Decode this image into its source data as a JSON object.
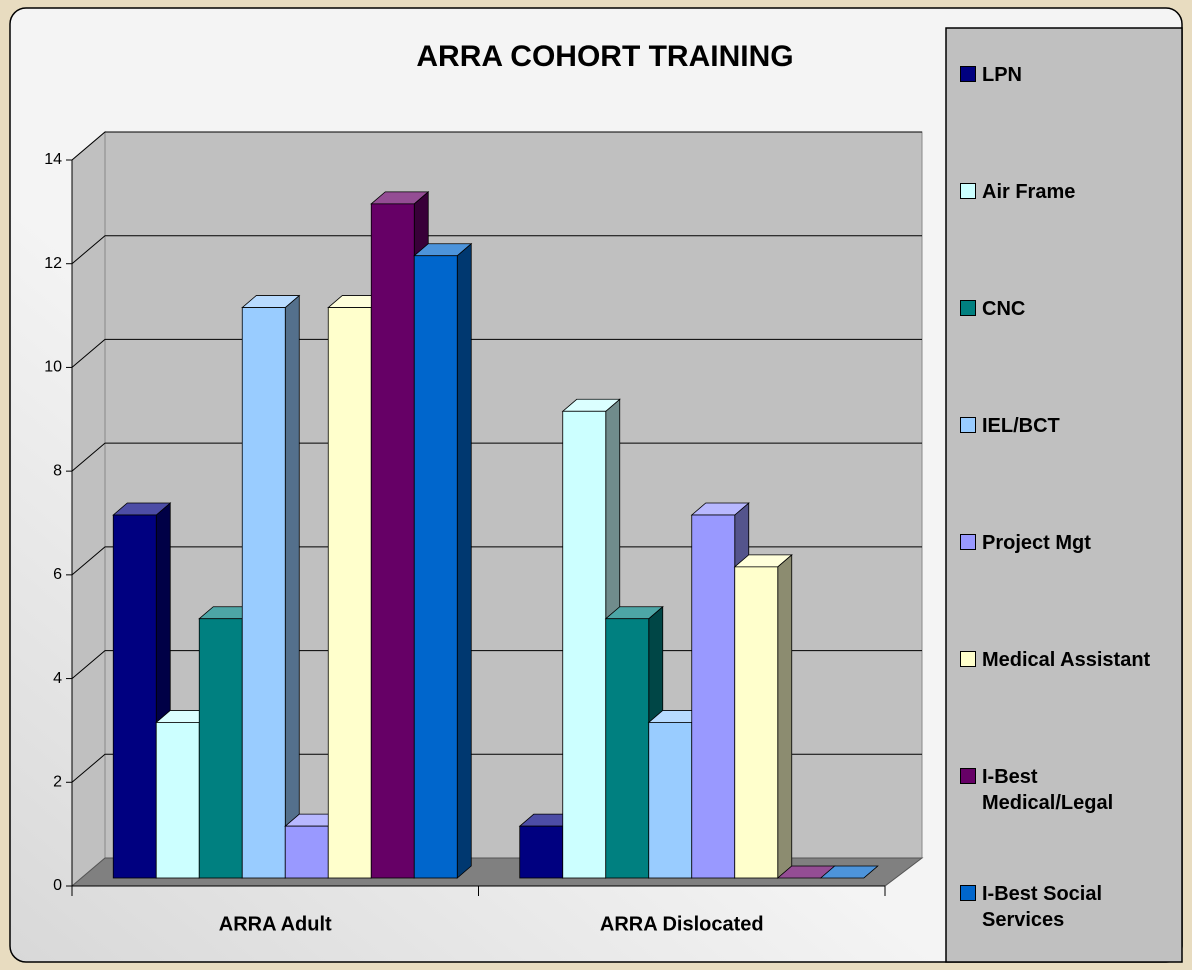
{
  "chart_data": {
    "type": "bar3d",
    "title": "ARRA COHORT TRAINING",
    "categories": [
      "ARRA Adult",
      "ARRA Dislocated"
    ],
    "series": [
      {
        "name": "LPN",
        "color": "#000080",
        "values": [
          7,
          1
        ]
      },
      {
        "name": "Air Frame",
        "color": "#ccffff",
        "values": [
          3,
          9
        ]
      },
      {
        "name": "CNC",
        "color": "#008080",
        "values": [
          5,
          5
        ]
      },
      {
        "name": "IEL/BCT",
        "color": "#99ccff",
        "values": [
          11,
          3
        ]
      },
      {
        "name": "Project Mgt",
        "color": "#9999ff",
        "values": [
          1,
          7
        ]
      },
      {
        "name": "Medical Assistant",
        "color": "#ffffcc",
        "values": [
          11,
          6
        ]
      },
      {
        "name": "I-Best Medical/Legal",
        "color": "#660066",
        "values": [
          13,
          0
        ]
      },
      {
        "name": "I-Best Social Services",
        "color": "#0066cc",
        "values": [
          12,
          0
        ]
      }
    ],
    "ylim": [
      0,
      14
    ],
    "yticks": [
      0,
      2,
      4,
      6,
      8,
      10,
      12,
      14
    ],
    "grid": true,
    "legend": "right"
  }
}
